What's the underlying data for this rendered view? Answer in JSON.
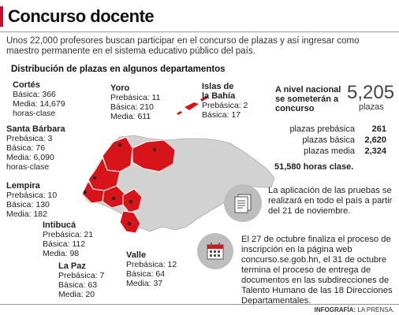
{
  "title": "Concurso docente",
  "intro": "Unos 22,000 profesores buscan participar en el concurso de plazas y así ingresar como maestro permanente en el sistema educativo público del país.",
  "section_title": "Distribución de plazas en algunos departamentos",
  "departments": [
    {
      "name": "Cortés",
      "lines": [
        {
          "label": "Básica:",
          "value": "366"
        },
        {
          "label": "Media:",
          "value": "14,679"
        },
        {
          "label": "",
          "value": "horas-clase"
        }
      ]
    },
    {
      "name": "Yoro",
      "lines": [
        {
          "label": "Prebásica:",
          "value": "11"
        },
        {
          "label": "Básica:",
          "value": "210"
        },
        {
          "label": "Media:",
          "value": "611"
        }
      ]
    },
    {
      "name": "Islas de la Bahía",
      "lines": [
        {
          "label": "Prebásica:",
          "value": "2"
        },
        {
          "label": "Básica:",
          "value": "17"
        }
      ]
    },
    {
      "name": "Santa Bárbara",
      "lines": [
        {
          "label": "Prebásica:",
          "value": "3"
        },
        {
          "label": "Básica:",
          "value": "76"
        },
        {
          "label": "Media:",
          "value": "6,090"
        },
        {
          "label": "",
          "value": "horas-clase"
        }
      ]
    },
    {
      "name": "Lempira",
      "lines": [
        {
          "label": "Prebásica:",
          "value": "10"
        },
        {
          "label": "Básica:",
          "value": "130"
        },
        {
          "label": "Media:",
          "value": "182"
        }
      ]
    },
    {
      "name": "Intibucá",
      "lines": [
        {
          "label": "Prebásica:",
          "value": "21"
        },
        {
          "label": "Básica:",
          "value": "112"
        },
        {
          "label": "Media:",
          "value": "98"
        }
      ]
    },
    {
      "name": "La Paz",
      "lines": [
        {
          "label": "Prebásica:",
          "value": "7"
        },
        {
          "label": "Básica:",
          "value": "63"
        },
        {
          "label": "Media:",
          "value": "20"
        }
      ]
    },
    {
      "name": "Valle",
      "lines": [
        {
          "label": "Prebásica:",
          "value": "12"
        },
        {
          "label": "Básica:",
          "value": "64"
        },
        {
          "label": "Media:",
          "value": "37"
        }
      ]
    }
  ],
  "national": {
    "label": "A nivel nacional se someterán a concurso",
    "total": "5,205",
    "total_unit": "plazas",
    "rows": [
      {
        "label": "plazas prebásica",
        "value": "261"
      },
      {
        "label": "plazas básica",
        "value": "2,620"
      },
      {
        "label": "plazas media",
        "value": "2,324"
      }
    ],
    "hours": "51,580 horas clase."
  },
  "notes": [
    {
      "icon": "document-stack-icon",
      "text": "La aplicación de las pruebas se realizará en todo el país a partir del 21 de noviembre."
    },
    {
      "icon": "calendar-icon",
      "text": "El 27 de octubre finaliza el proceso de inscripción en la página web concurso.se.gob.hn, el 31 de octubre termina el proceso de entrega de documentos en las subdirecciones de Talento Humano de las 18 Direcciones Departamentales."
    }
  ],
  "credit_label": "INFOGRAFÍA:",
  "credit_value": "LA PRENSA.",
  "colors": {
    "accent": "#d7141a",
    "map_gray": "#d2d2d2",
    "icon_bg": "#bdbdbd"
  }
}
